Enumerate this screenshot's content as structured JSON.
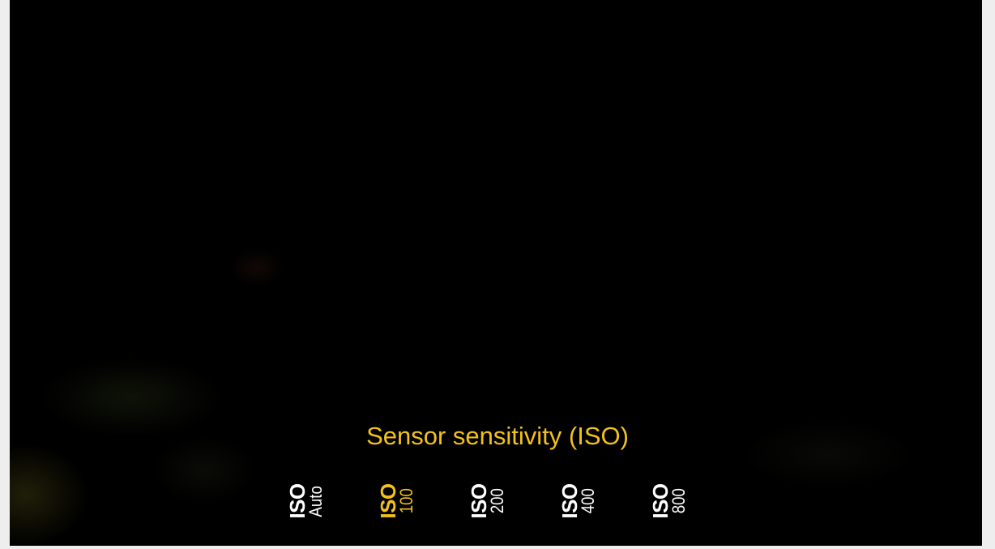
{
  "camera": {
    "setting_title": "Sensor sensitivity (ISO)",
    "selected_value": "100",
    "accent_color": "#f2c21a",
    "options": [
      {
        "label": "ISO",
        "value": "Auto"
      },
      {
        "label": "ISO",
        "value": "100"
      },
      {
        "label": "ISO",
        "value": "200"
      },
      {
        "label": "ISO",
        "value": "400"
      },
      {
        "label": "ISO",
        "value": "800"
      }
    ]
  }
}
